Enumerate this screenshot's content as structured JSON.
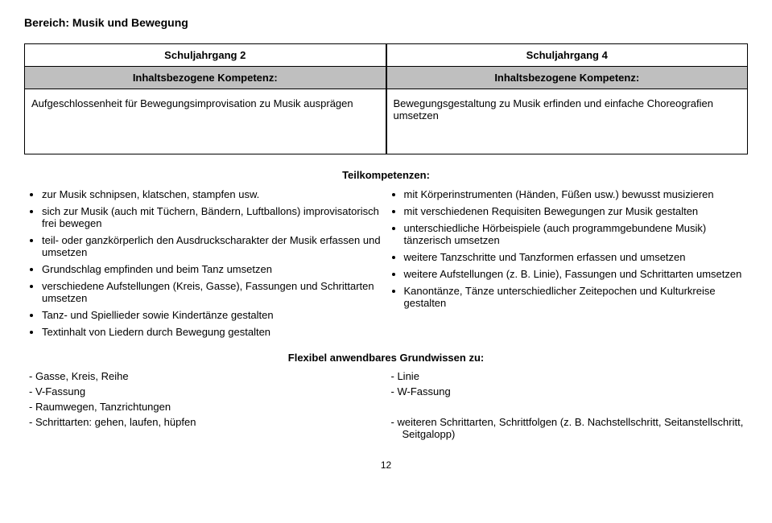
{
  "title": "Bereich: Musik und Bewegung",
  "left": {
    "grade": "Schuljahrgang 2",
    "competence_label": "Inhaltsbezogene Kompetenz:",
    "competence_body": "Aufgeschlossenheit für Bewegungsimprovisation zu Musik ausprägen"
  },
  "right": {
    "grade": "Schuljahrgang 4",
    "competence_label": "Inhaltsbezogene Kompetenz:",
    "competence_body": "Bewegungsgestaltung zu Musik erfinden und einfache Choreografien umsetzen"
  },
  "teil_header": "Teilkompetenzen:",
  "left_bullets": [
    "zur Musik schnipsen, klatschen, stampfen usw.",
    "sich zur Musik (auch mit Tüchern, Bändern, Luftballons) improvisatorisch frei bewegen",
    "teil- oder ganzkörperlich den Ausdruckscharakter der Musik erfassen und umsetzen",
    "Grundschlag empfinden und beim Tanz umsetzen",
    "verschiedene Aufstellungen (Kreis, Gasse), Fassungen und Schrittarten umsetzen",
    "Tanz- und Spiellieder sowie Kindertänze gestalten",
    "Textinhalt von Liedern durch Bewegung gestalten"
  ],
  "right_bullets": [
    "mit Körperinstrumenten (Händen, Füßen usw.) bewusst musizieren",
    "mit verschiedenen Requisiten Bewegungen zur Musik gestalten",
    "unterschiedliche Hörbeispiele (auch programmgebundene Musik) tänzerisch umsetzen",
    "weitere Tanzschritte und Tanzformen erfassen und umsetzen",
    "weitere Aufstellungen (z. B. Linie), Fassungen und Schrittarten umsetzen",
    "Kanontänze, Tänze unterschiedlicher Zeitepochen und Kulturkreise gestalten"
  ],
  "flex_header": "Flexibel anwendbares Grundwissen zu:",
  "left_dashes": [
    "Gasse, Kreis, Reihe",
    "V-Fassung",
    "Raumwegen, Tanzrichtungen",
    "Schrittarten: gehen, laufen, hüpfen"
  ],
  "right_dashes": [
    "Linie",
    "W-Fassung",
    "",
    "weiteren Schrittarten, Schrittfolgen (z. B. Nachstellschritt, Seitanstellschritt, Seitgalopp)"
  ],
  "page_number": "12"
}
